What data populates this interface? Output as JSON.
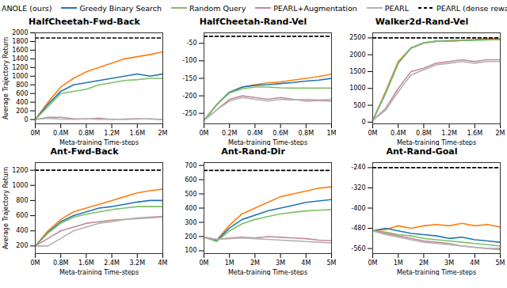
{
  "chart_data": [
    {
      "type": "line",
      "title": "HalfCheetah-Fwd-Back",
      "x_label": "Meta-training Time-steps",
      "y_label": "Average Trajectory Return",
      "legend": "top",
      "grid": false,
      "x": [
        0,
        0.2,
        0.4,
        0.6,
        0.8,
        1.0,
        1.2,
        1.4,
        1.6,
        1.8,
        2.0
      ],
      "xlim": [
        0,
        2
      ],
      "xticks": [
        {
          "value": 0,
          "label": "0M"
        },
        {
          "value": 0.4,
          "label": "0.4M"
        },
        {
          "value": 0.8,
          "label": "0.8M"
        },
        {
          "value": 1.2,
          "label": "1.2M"
        },
        {
          "value": 1.6,
          "label": "1.6M"
        },
        {
          "value": 2,
          "label": "2M"
        }
      ],
      "ylim": [
        -100,
        2000
      ],
      "yticks": [
        0,
        200,
        400,
        600,
        800,
        1000,
        1200,
        1400,
        1600,
        1800,
        2000
      ],
      "series": [
        {
          "name": "ANOLE (ours)",
          "color": "#ff7f0e",
          "line_style": "solid",
          "values": [
            0,
            400,
            750,
            950,
            1100,
            1200,
            1300,
            1400,
            1450,
            1500,
            1560
          ]
        },
        {
          "name": "Greedy Binary Search",
          "color": "#1f77b4",
          "line_style": "solid",
          "values": [
            0,
            350,
            650,
            800,
            850,
            900,
            950,
            1000,
            1050,
            1000,
            1050
          ]
        },
        {
          "name": "Random Query",
          "color": "#7fbf6a",
          "line_style": "solid",
          "values": [
            0,
            300,
            600,
            650,
            700,
            800,
            850,
            900,
            920,
            950,
            950
          ]
        },
        {
          "name": "PEARL+Augmentation",
          "color": "#c48a9a",
          "line_style": "solid",
          "values": [
            0,
            50,
            50,
            20,
            10,
            30,
            0,
            10,
            20,
            10,
            0
          ]
        },
        {
          "name": "PEARL",
          "color": "#b3b3b3",
          "line_style": "solid",
          "values": [
            0,
            30,
            10,
            0,
            20,
            0,
            10,
            0,
            10,
            20,
            0
          ]
        },
        {
          "name": "PEARL (dense rewards)",
          "color": "#000000",
          "line_style": "dashed",
          "values": [
            1880,
            1880,
            1880,
            1880,
            1880,
            1880,
            1880,
            1880,
            1880,
            1880,
            1880
          ]
        }
      ]
    },
    {
      "type": "line",
      "title": "HalfCheetah-Rand-Vel",
      "x_label": "Meta-training Time-steps",
      "grid": false,
      "x": [
        0,
        0.1,
        0.2,
        0.3,
        0.4,
        0.5,
        0.6,
        0.7,
        0.8,
        0.9,
        1.0
      ],
      "xlim": [
        0,
        1
      ],
      "xticks": [
        {
          "value": 0,
          "label": "0M"
        },
        {
          "value": 0.2,
          "label": "0.2M"
        },
        {
          "value": 0.4,
          "label": "0.4M"
        },
        {
          "value": 0.6,
          "label": "0.6M"
        },
        {
          "value": 0.8,
          "label": "0.8M"
        },
        {
          "value": 1,
          "label": "1M"
        }
      ],
      "ylim": [
        -280,
        -20
      ],
      "yticks": [
        -250,
        -200,
        -150,
        -100,
        -50
      ],
      "series": [
        {
          "name": "ANOLE (ours)",
          "color": "#ff7f0e",
          "line_style": "solid",
          "values": [
            -270,
            -225,
            -190,
            -175,
            -168,
            -163,
            -160,
            -155,
            -150,
            -145,
            -138
          ]
        },
        {
          "name": "Greedy Binary Search",
          "color": "#1f77b4",
          "line_style": "solid",
          "values": [
            -270,
            -225,
            -190,
            -175,
            -170,
            -168,
            -165,
            -162,
            -158,
            -155,
            -150
          ]
        },
        {
          "name": "Random Query",
          "color": "#7fbf6a",
          "line_style": "solid",
          "values": [
            -270,
            -225,
            -192,
            -180,
            -175,
            -175,
            -177,
            -178,
            -178,
            -178,
            -178
          ]
        },
        {
          "name": "PEARL+Augmentation",
          "color": "#c48a9a",
          "line_style": "solid",
          "values": [
            -270,
            -240,
            -210,
            -200,
            -205,
            -210,
            -205,
            -210,
            -215,
            -213,
            -215
          ]
        },
        {
          "name": "PEARL",
          "color": "#b3b3b3",
          "line_style": "solid",
          "values": [
            -270,
            -240,
            -215,
            -205,
            -210,
            -215,
            -210,
            -212,
            -210,
            -212,
            -210
          ]
        },
        {
          "name": "PEARL (dense rewards)",
          "color": "#000000",
          "line_style": "dashed",
          "values": [
            -30,
            -30,
            -30,
            -30,
            -30,
            -30,
            -30,
            -30,
            -30,
            -30,
            -30
          ]
        }
      ]
    },
    {
      "type": "line",
      "title": "Walker2d-Rand-Vel",
      "x_label": "Meta-training Time-steps",
      "grid": false,
      "x": [
        0,
        0.2,
        0.4,
        0.6,
        0.8,
        1.0,
        1.2,
        1.4,
        1.6,
        1.8,
        2.0
      ],
      "xlim": [
        0,
        2
      ],
      "xticks": [
        {
          "value": 0,
          "label": "0M"
        },
        {
          "value": 0.4,
          "label": "0.4M"
        },
        {
          "value": 0.8,
          "label": "0.8M"
        },
        {
          "value": 1.2,
          "label": "1.2M"
        },
        {
          "value": 1.6,
          "label": "1.6M"
        },
        {
          "value": 2,
          "label": "2M"
        }
      ],
      "ylim": [
        -50,
        2650
      ],
      "yticks": [
        0,
        500,
        1000,
        1500,
        2000,
        2500
      ],
      "series": [
        {
          "name": "ANOLE (ours)",
          "color": "#ff7f0e",
          "line_style": "solid",
          "values": [
            50,
            900,
            1800,
            2200,
            2350,
            2400,
            2420,
            2430,
            2450,
            2470,
            2480
          ]
        },
        {
          "name": "Greedy Binary Search",
          "color": "#1f77b4",
          "line_style": "solid",
          "values": [
            50,
            850,
            1750,
            2200,
            2350,
            2400,
            2410,
            2420,
            2440,
            2450,
            2450
          ]
        },
        {
          "name": "Random Query",
          "color": "#7fbf6a",
          "line_style": "solid",
          "values": [
            50,
            850,
            1750,
            2200,
            2350,
            2400,
            2400,
            2420,
            2430,
            2440,
            2450
          ]
        },
        {
          "name": "PEARL+Augmentation",
          "color": "#c48a9a",
          "line_style": "solid",
          "values": [
            50,
            400,
            1000,
            1500,
            1600,
            1750,
            1800,
            1850,
            1800,
            1850,
            1850
          ]
        },
        {
          "name": "PEARL",
          "color": "#b3b3b3",
          "line_style": "solid",
          "values": [
            50,
            350,
            900,
            1400,
            1550,
            1700,
            1750,
            1800,
            1750,
            1800,
            1800
          ]
        },
        {
          "name": "PEARL (dense rewards)",
          "color": "#000000",
          "line_style": "dashed",
          "values": [
            2500,
            2500,
            2500,
            2500,
            2500,
            2500,
            2500,
            2500,
            2500,
            2500,
            2500
          ]
        }
      ]
    },
    {
      "type": "line",
      "title": "Ant-Fwd-Back",
      "x_label": "Meta-training Time-steps",
      "y_label": "Average Trajectory Return",
      "grid": false,
      "x": [
        0,
        0.4,
        0.8,
        1.2,
        1.6,
        2.0,
        2.4,
        2.8,
        3.2,
        3.6,
        4.0
      ],
      "xlim": [
        0,
        4
      ],
      "xticks": [
        {
          "value": 0,
          "label": "0M"
        },
        {
          "value": 0.8,
          "label": "0.8M"
        },
        {
          "value": 1.6,
          "label": "1.6M"
        },
        {
          "value": 2.4,
          "label": "2.4M"
        },
        {
          "value": 3.2,
          "label": "3.2M"
        },
        {
          "value": 4,
          "label": "4M"
        }
      ],
      "ylim": [
        100,
        1300
      ],
      "yticks": [
        200,
        400,
        600,
        800,
        1000,
        1200
      ],
      "series": [
        {
          "name": "ANOLE (ours)",
          "color": "#ff7f0e",
          "line_style": "solid",
          "values": [
            200,
            400,
            550,
            650,
            700,
            750,
            800,
            850,
            900,
            930,
            950
          ]
        },
        {
          "name": "Greedy Binary Search",
          "color": "#1f77b4",
          "line_style": "solid",
          "values": [
            200,
            380,
            520,
            600,
            650,
            700,
            720,
            750,
            780,
            800,
            800
          ]
        },
        {
          "name": "Random Query",
          "color": "#7fbf6a",
          "line_style": "solid",
          "values": [
            200,
            370,
            500,
            580,
            620,
            650,
            680,
            700,
            720,
            720,
            720
          ]
        },
        {
          "name": "PEARL+Augmentation",
          "color": "#c48a9a",
          "line_style": "solid",
          "values": [
            200,
            300,
            400,
            450,
            500,
            520,
            540,
            550,
            570,
            580,
            590
          ]
        },
        {
          "name": "PEARL",
          "color": "#b3b3b3",
          "line_style": "solid",
          "values": [
            200,
            200,
            300,
            400,
            450,
            500,
            520,
            550,
            560,
            570,
            580
          ]
        },
        {
          "name": "PEARL (dense rewards)",
          "color": "#000000",
          "line_style": "dashed",
          "values": [
            1200,
            1200,
            1200,
            1200,
            1200,
            1200,
            1200,
            1200,
            1200,
            1200,
            1200
          ]
        }
      ]
    },
    {
      "type": "line",
      "title": "Ant-Rand-Dir",
      "x_label": "Meta-training Time-steps",
      "grid": false,
      "x": [
        0,
        0.5,
        1.0,
        1.5,
        2.0,
        2.5,
        3.0,
        3.5,
        4.0,
        4.5,
        5.0
      ],
      "xlim": [
        0,
        5
      ],
      "xticks": [
        {
          "value": 0,
          "label": "0M"
        },
        {
          "value": 1,
          "label": "1M"
        },
        {
          "value": 2,
          "label": "2M"
        },
        {
          "value": 3,
          "label": "3M"
        },
        {
          "value": 4,
          "label": "4M"
        },
        {
          "value": 5,
          "label": "5M"
        }
      ],
      "ylim": [
        80,
        720
      ],
      "yticks": [
        100,
        200,
        300,
        400,
        500,
        600,
        700
      ],
      "series": [
        {
          "name": "ANOLE (ours)",
          "color": "#ff7f0e",
          "line_style": "solid",
          "values": [
            195,
            175,
            280,
            360,
            400,
            440,
            480,
            500,
            520,
            540,
            550
          ]
        },
        {
          "name": "Greedy Binary Search",
          "color": "#1f77b4",
          "line_style": "solid",
          "values": [
            195,
            170,
            260,
            320,
            350,
            380,
            400,
            420,
            440,
            450,
            460
          ]
        },
        {
          "name": "Random Query",
          "color": "#7fbf6a",
          "line_style": "solid",
          "values": [
            195,
            165,
            240,
            290,
            320,
            340,
            360,
            370,
            380,
            385,
            390
          ]
        },
        {
          "name": "PEARL+Augmentation",
          "color": "#c48a9a",
          "line_style": "solid",
          "values": [
            195,
            180,
            190,
            195,
            190,
            200,
            195,
            190,
            185,
            175,
            170
          ]
        },
        {
          "name": "PEARL",
          "color": "#b3b3b3",
          "line_style": "solid",
          "values": [
            195,
            180,
            185,
            190,
            185,
            180,
            175,
            170,
            165,
            160,
            155
          ]
        },
        {
          "name": "PEARL (dense rewards)",
          "color": "#000000",
          "line_style": "dashed",
          "values": [
            665,
            665,
            665,
            665,
            665,
            665,
            665,
            665,
            665,
            665,
            665
          ]
        }
      ]
    },
    {
      "type": "line",
      "title": "Ant-Rand-Goal",
      "x_label": "Meta-training Time-steps",
      "grid": false,
      "x": [
        0,
        0.5,
        1.0,
        1.5,
        2.0,
        2.5,
        3.0,
        3.5,
        4.0,
        4.5,
        5.0
      ],
      "xlim": [
        0,
        5
      ],
      "xticks": [
        {
          "value": 0,
          "label": "0M"
        },
        {
          "value": 1,
          "label": "1M"
        },
        {
          "value": 2,
          "label": "2M"
        },
        {
          "value": 3,
          "label": "3M"
        },
        {
          "value": 4,
          "label": "4M"
        },
        {
          "value": 5,
          "label": "5M"
        }
      ],
      "ylim": [
        -580,
        -220
      ],
      "yticks": [
        -560,
        -480,
        -400,
        -320,
        -240
      ],
      "series": [
        {
          "name": "ANOLE (ours)",
          "color": "#ff7f0e",
          "line_style": "solid",
          "values": [
            -490,
            -485,
            -470,
            -480,
            -470,
            -465,
            -470,
            -460,
            -470,
            -465,
            -475
          ]
        },
        {
          "name": "Greedy Binary Search",
          "color": "#1f77b4",
          "line_style": "solid",
          "values": [
            -490,
            -480,
            -490,
            -500,
            -505,
            -510,
            -520,
            -515,
            -525,
            -530,
            -535
          ]
        },
        {
          "name": "Random Query",
          "color": "#7fbf6a",
          "line_style": "solid",
          "values": [
            -490,
            -495,
            -505,
            -510,
            -520,
            -525,
            -530,
            -535,
            -540,
            -545,
            -550
          ]
        },
        {
          "name": "PEARL+Augmentation",
          "color": "#c48a9a",
          "line_style": "solid",
          "values": [
            -490,
            -500,
            -510,
            -520,
            -530,
            -535,
            -540,
            -550,
            -555,
            -560,
            -560
          ]
        },
        {
          "name": "PEARL",
          "color": "#b3b3b3",
          "line_style": "solid",
          "values": [
            -490,
            -505,
            -515,
            -525,
            -535,
            -540,
            -545,
            -550,
            -555,
            -560,
            -565
          ]
        },
        {
          "name": "PEARL (dense rewards)",
          "color": "#000000",
          "line_style": "dashed",
          "values": [
            -240,
            -240,
            -240,
            -240,
            -240,
            -240,
            -240,
            -240,
            -240,
            -240,
            -240
          ]
        }
      ]
    }
  ]
}
